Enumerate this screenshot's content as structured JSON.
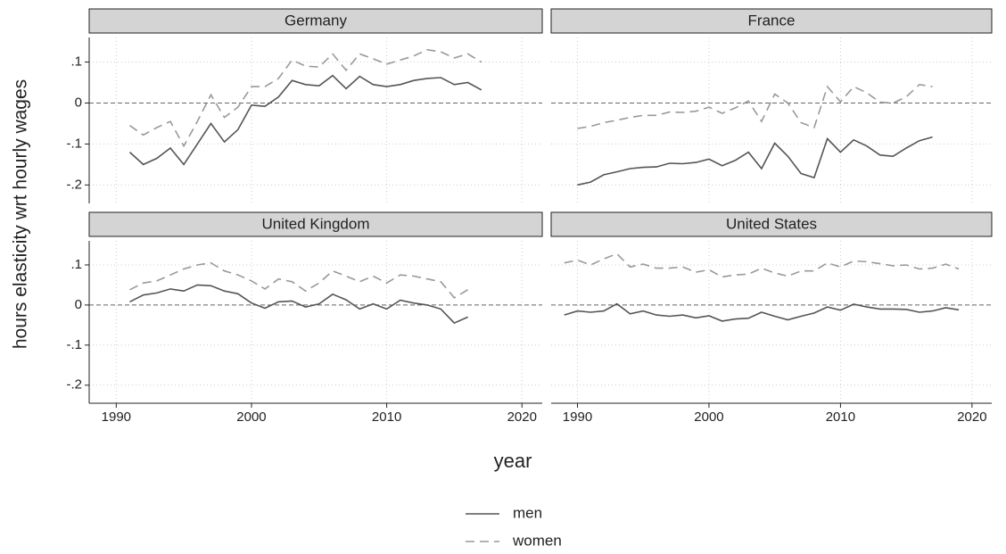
{
  "chart_data": {
    "type": "line",
    "ylabel": "hours elasticity wrt hourly wages",
    "xlabel": "year",
    "legend": [
      {
        "name": "men",
        "color": "#555555",
        "dash": "solid"
      },
      {
        "name": "women",
        "color": "#999999",
        "dash": "dashed"
      }
    ],
    "xlim": [
      1988,
      2021.5
    ],
    "xticks": [
      1990,
      2000,
      2010,
      2020
    ],
    "ylim": [
      -0.245,
      0.16
    ],
    "yticks": [
      {
        "value": 0.1,
        "label": ".1"
      },
      0,
      {
        "value": -0.1,
        "label": "-.1"
      },
      {
        "value": -0.2,
        "label": "-.2"
      }
    ],
    "refline": 0,
    "grid": true,
    "panels": [
      {
        "title": "Germany",
        "x": [
          1991,
          1992,
          1993,
          1994,
          1995,
          1996,
          1997,
          1998,
          1999,
          2000,
          2001,
          2002,
          2003,
          2004,
          2005,
          2006,
          2007,
          2008,
          2009,
          2010,
          2011,
          2012,
          2013,
          2014,
          2015,
          2016,
          2017
        ],
        "series": [
          {
            "values": [
              -0.12,
              -0.15,
              -0.135,
              -0.11,
              -0.15,
              -0.1,
              -0.05,
              -0.095,
              -0.065,
              -0.005,
              -0.008,
              0.015,
              0.055,
              0.045,
              0.042,
              0.067,
              0.035,
              0.065,
              0.045,
              0.04,
              0.045,
              0.055,
              0.06,
              0.062,
              0.045,
              0.05,
              0.032
            ]
          },
          {
            "values": [
              -0.055,
              -0.078,
              -0.06,
              -0.045,
              -0.105,
              -0.045,
              0.02,
              -0.035,
              -0.01,
              0.04,
              0.04,
              0.06,
              0.105,
              0.09,
              0.088,
              0.12,
              0.08,
              0.12,
              0.108,
              0.095,
              0.105,
              0.115,
              0.13,
              0.125,
              0.11,
              0.12,
              0.1
            ]
          }
        ]
      },
      {
        "title": "France",
        "x": [
          1990,
          1991,
          1992,
          1993,
          1994,
          1995,
          1996,
          1997,
          1998,
          1999,
          2000,
          2001,
          2002,
          2003,
          2004,
          2005,
          2006,
          2007,
          2008,
          2009,
          2010,
          2011,
          2012,
          2013,
          2014,
          2015,
          2016,
          2017
        ],
        "series": [
          {
            "values": [
              -0.2,
              -0.193,
              -0.175,
              -0.168,
              -0.16,
              -0.157,
              -0.156,
              -0.147,
              -0.148,
              -0.145,
              -0.137,
              -0.153,
              -0.14,
              -0.12,
              -0.16,
              -0.098,
              -0.13,
              -0.172,
              -0.182,
              -0.087,
              -0.12,
              -0.09,
              -0.105,
              -0.127,
              -0.13,
              -0.11,
              -0.092,
              -0.083
            ]
          },
          {
            "values": [
              -0.062,
              -0.057,
              -0.048,
              -0.042,
              -0.035,
              -0.03,
              -0.03,
              -0.022,
              -0.023,
              -0.02,
              -0.01,
              -0.025,
              -0.012,
              0.005,
              -0.045,
              0.022,
              0.0,
              -0.048,
              -0.06,
              0.04,
              0.003,
              0.04,
              0.025,
              0.002,
              0.0,
              0.015,
              0.045,
              0.04
            ]
          }
        ]
      },
      {
        "title": "United Kingdom",
        "x": [
          1991,
          1992,
          1993,
          1994,
          1995,
          1996,
          1997,
          1998,
          1999,
          2000,
          2001,
          2002,
          2003,
          2004,
          2005,
          2006,
          2007,
          2008,
          2009,
          2010,
          2011,
          2012,
          2013,
          2014,
          2015,
          2016
        ],
        "series": [
          {
            "values": [
              0.008,
              0.025,
              0.03,
              0.04,
              0.035,
              0.05,
              0.048,
              0.035,
              0.028,
              0.005,
              -0.008,
              0.008,
              0.01,
              -0.005,
              0.003,
              0.027,
              0.013,
              -0.01,
              0.003,
              -0.01,
              0.012,
              0.005,
              0.0,
              -0.01,
              -0.045,
              -0.03
            ]
          },
          {
            "values": [
              0.038,
              0.055,
              0.06,
              0.075,
              0.09,
              0.1,
              0.105,
              0.085,
              0.075,
              0.06,
              0.04,
              0.065,
              0.058,
              0.035,
              0.055,
              0.085,
              0.072,
              0.058,
              0.072,
              0.055,
              0.075,
              0.072,
              0.065,
              0.058,
              0.018,
              0.038
            ]
          }
        ]
      },
      {
        "title": "United States",
        "x": [
          1989,
          1990,
          1991,
          1992,
          1993,
          1994,
          1995,
          1996,
          1997,
          1998,
          1999,
          2000,
          2001,
          2002,
          2003,
          2004,
          2005,
          2006,
          2007,
          2008,
          2009,
          2010,
          2011,
          2012,
          2013,
          2014,
          2015,
          2016,
          2017,
          2018,
          2019
        ],
        "series": [
          {
            "values": [
              -0.025,
              -0.015,
              -0.018,
              -0.015,
              0.003,
              -0.022,
              -0.015,
              -0.025,
              -0.028,
              -0.025,
              -0.032,
              -0.027,
              -0.04,
              -0.035,
              -0.033,
              -0.018,
              -0.028,
              -0.037,
              -0.028,
              -0.02,
              -0.005,
              -0.013,
              0.002,
              -0.005,
              -0.01,
              -0.01,
              -0.011,
              -0.018,
              -0.015,
              -0.007,
              -0.012
            ]
          },
          {
            "values": [
              0.105,
              0.112,
              0.1,
              0.115,
              0.128,
              0.095,
              0.102,
              0.092,
              0.092,
              0.095,
              0.082,
              0.088,
              0.07,
              0.075,
              0.077,
              0.092,
              0.08,
              0.072,
              0.085,
              0.085,
              0.105,
              0.095,
              0.11,
              0.108,
              0.103,
              0.098,
              0.1,
              0.09,
              0.092,
              0.102,
              0.09
            ]
          }
        ]
      }
    ]
  }
}
